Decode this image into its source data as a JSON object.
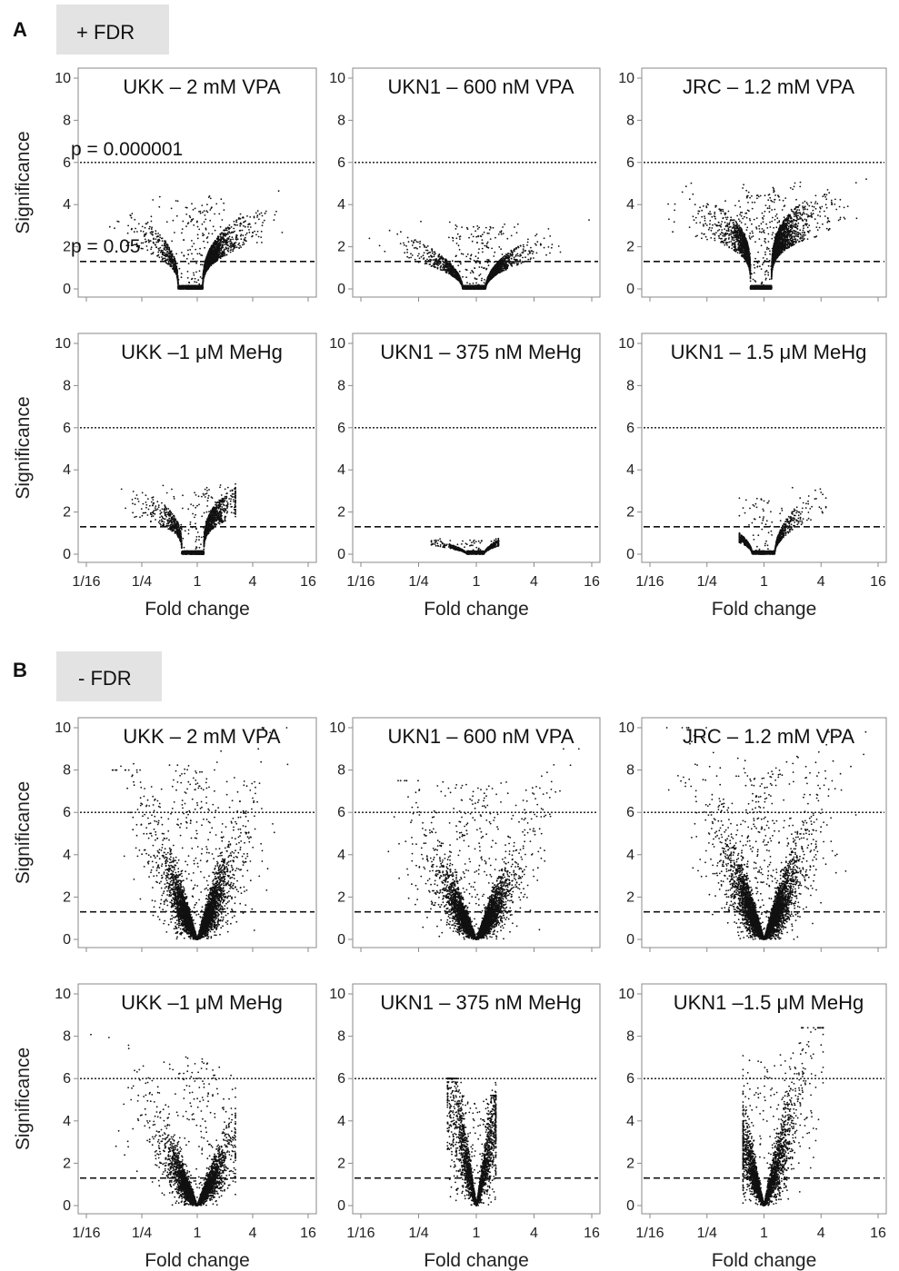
{
  "sections": [
    {
      "letter": "A",
      "label": "+ FDR"
    },
    {
      "letter": "B",
      "label": "- FDR"
    }
  ],
  "axis_text": {
    "ylabel": "Significance",
    "xlabel": "Fold change",
    "yticks": [
      "0",
      "2",
      "4",
      "6",
      "8",
      "10"
    ],
    "xticks": [
      "1/16",
      "1/4",
      "1",
      "4",
      "16"
    ]
  },
  "annotations": {
    "strict": "p = 0.000001",
    "loose": "p = 0.05"
  },
  "colors": {
    "points": "#111111",
    "frame": "#8a8a8a",
    "section_box": "#e3e3e3"
  },
  "chart_data": [
    {
      "type": "scatter",
      "section": "A",
      "title": "UKK – 2 mM VPA",
      "xlabel": "",
      "ylabel": "Significance",
      "x_scale": "log2",
      "xlim": [
        "1/16",
        "16"
      ],
      "ylim": [
        0,
        10
      ],
      "thresholds": [
        6.0,
        1.3
      ],
      "n_points": 4200,
      "profile": {
        "x_min": 0.1,
        "x_max": 9.0,
        "y_max": 5.1,
        "cap_lo": 4.2,
        "cap_hi": 4.5,
        "sharp": 0.35,
        "fdr": true,
        "floor_lo": 0.62,
        "floor_hi": 1.15
      }
    },
    {
      "type": "scatter",
      "section": "A",
      "title": "UKN1 – 600 nM VPA",
      "xlabel": "",
      "ylabel": "",
      "x_scale": "log2",
      "xlim": [
        "1/16",
        "16"
      ],
      "ylim": [
        0,
        10
      ],
      "thresholds": [
        6.0,
        1.3
      ],
      "n_points": 4200,
      "profile": {
        "x_min": 0.07,
        "x_max": 15.0,
        "y_max": 3.8,
        "cap_lo": 3.4,
        "cap_hi": 3.7,
        "sharp": 0.5,
        "fdr": true,
        "floor_lo": 0.72,
        "floor_hi": 1.25
      }
    },
    {
      "type": "scatter",
      "section": "A",
      "title": "JRC – 1.2 mM VPA",
      "xlabel": "",
      "ylabel": "",
      "x_scale": "log2",
      "xlim": [
        "1/16",
        "16"
      ],
      "ylim": [
        0,
        10
      ],
      "thresholds": [
        6.0,
        1.3
      ],
      "n_points": 5200,
      "profile": {
        "x_min": 0.09,
        "x_max": 12.0,
        "y_max": 5.6,
        "cap_lo": 5.0,
        "cap_hi": 5.4,
        "sharp": 0.25,
        "fdr": true,
        "floor_lo": 0.72,
        "floor_hi": 1.2
      }
    },
    {
      "type": "scatter",
      "section": "A",
      "title": "UKK –1 μM MeHg",
      "xlabel": "Fold change",
      "ylabel": "Significance",
      "x_scale": "log2",
      "xlim": [
        "1/16",
        "16"
      ],
      "ylim": [
        0,
        10
      ],
      "thresholds": [
        6.0,
        1.3
      ],
      "n_points": 2600,
      "profile": {
        "x_min": 0.15,
        "x_max": 2.6,
        "y_max": 3.8,
        "cap_lo": 3.4,
        "cap_hi": 3.2,
        "sharp": 0.3,
        "fdr": true,
        "floor_lo": 0.68,
        "floor_hi": 1.18
      }
    },
    {
      "type": "scatter",
      "section": "A",
      "title": "UKN1 – 375 nM MeHg",
      "xlabel": "Fold change",
      "ylabel": "",
      "x_scale": "log2",
      "xlim": [
        "1/16",
        "16"
      ],
      "ylim": [
        0,
        10
      ],
      "thresholds": [
        6.0,
        1.3
      ],
      "n_points": 1100,
      "profile": {
        "x_min": 0.34,
        "x_max": 1.7,
        "y_max": 0.8,
        "cap_lo": 0.75,
        "cap_hi": 0.7,
        "sharp": 0.6,
        "fdr": true,
        "floor_lo": 0.8,
        "floor_hi": 1.2
      }
    },
    {
      "type": "scatter",
      "section": "A",
      "title": "UKN1 – 1.5 μM MeHg",
      "xlabel": "Fold change",
      "ylabel": "",
      "x_scale": "log2",
      "xlim": [
        "1/16",
        "16"
      ],
      "ylim": [
        0,
        10
      ],
      "thresholds": [
        6.0,
        1.3
      ],
      "n_points": 1500,
      "profile": {
        "x_min": 0.55,
        "x_max": 4.5,
        "y_max": 3.6,
        "cap_lo": 1.0,
        "cap_hi": 3.5,
        "sharp": 0.5,
        "fdr": true,
        "floor_lo": 0.75,
        "floor_hi": 1.3
      }
    },
    {
      "type": "scatter",
      "section": "B",
      "title": "UKK – 2 mM VPA",
      "xlabel": "",
      "ylabel": "Significance",
      "x_scale": "log2",
      "xlim": [
        "1/16",
        "16"
      ],
      "ylim": [
        0,
        10
      ],
      "thresholds": [
        6.0,
        1.3
      ],
      "n_points": 5200,
      "profile": {
        "x_min": 0.12,
        "x_max": 12.0,
        "y_max": 10.0,
        "cap_lo": 8.0,
        "cap_hi": 10.0,
        "sharp": 0.9
      }
    },
    {
      "type": "scatter",
      "section": "B",
      "title": "UKN1 – 600 nM VPA",
      "xlabel": "",
      "ylabel": "",
      "x_scale": "log2",
      "xlim": [
        "1/16",
        "16"
      ],
      "ylim": [
        0,
        10
      ],
      "thresholds": [
        6.0,
        1.3
      ],
      "n_points": 5200,
      "profile": {
        "x_min": 0.07,
        "x_max": 15.0,
        "y_max": 9.0,
        "cap_lo": 7.5,
        "cap_hi": 9.0,
        "sharp": 0.9
      }
    },
    {
      "type": "scatter",
      "section": "B",
      "title": "JRC – 1.2 mM VPA",
      "xlabel": "",
      "ylabel": "",
      "x_scale": "log2",
      "xlim": [
        "1/16",
        "16"
      ],
      "ylim": [
        0,
        10
      ],
      "thresholds": [
        6.0,
        1.3
      ],
      "n_points": 6000,
      "profile": {
        "x_min": 0.09,
        "x_max": 12.0,
        "y_max": 10.0,
        "cap_lo": 10.0,
        "cap_hi": 9.8,
        "sharp": 1.0
      }
    },
    {
      "type": "scatter",
      "section": "B",
      "title": "UKK –1 μM MeHg",
      "xlabel": "Fold change",
      "ylabel": "Significance",
      "x_scale": "log2",
      "xlim": [
        "1/16",
        "16"
      ],
      "ylim": [
        0,
        10
      ],
      "thresholds": [
        6.0,
        1.3
      ],
      "n_points": 4000,
      "profile": {
        "x_min": 0.07,
        "x_max": 2.6,
        "y_max": 8.6,
        "cap_lo": 8.6,
        "cap_hi": 7.0,
        "sharp": 1.0
      }
    },
    {
      "type": "scatter",
      "section": "B",
      "title": "UKN1 – 375 nM MeHg",
      "xlabel": "Fold change",
      "ylabel": "",
      "x_scale": "log2",
      "xlim": [
        "1/16",
        "16"
      ],
      "ylim": [
        0,
        10
      ],
      "thresholds": [
        6.0,
        1.3
      ],
      "n_points": 2600,
      "profile": {
        "x_min": 0.5,
        "x_max": 1.6,
        "y_max": 6.0,
        "cap_lo": 6.0,
        "cap_hi": 5.2,
        "sharp": 1.0
      }
    },
    {
      "type": "scatter",
      "section": "B",
      "title": "UKN1 –1.5 μM MeHg",
      "xlabel": "Fold change",
      "ylabel": "",
      "x_scale": "log2",
      "xlim": [
        "1/16",
        "16"
      ],
      "ylim": [
        0,
        10
      ],
      "thresholds": [
        6.0,
        1.3
      ],
      "n_points": 3000,
      "profile": {
        "x_min": 0.6,
        "x_max": 4.2,
        "y_max": 8.4,
        "cap_lo": 6.5,
        "cap_hi": 8.4,
        "sharp": 1.0
      }
    }
  ]
}
